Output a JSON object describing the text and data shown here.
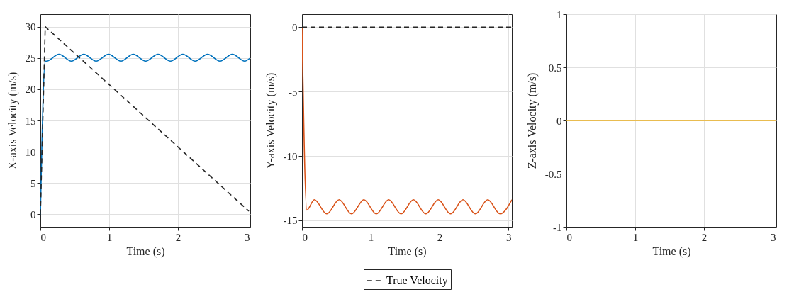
{
  "chart_data": [
    {
      "type": "line",
      "xlabel": "Time (s)",
      "ylabel": "X-axis Velocity (m/s)",
      "xlim": [
        0,
        3.05
      ],
      "xticks": [
        0,
        1,
        2,
        3
      ],
      "ylim": [
        -2,
        32
      ],
      "yticks": [
        0,
        5,
        10,
        15,
        20,
        25,
        30
      ],
      "grid": true,
      "series": [
        {
          "color": "#0072bd",
          "line_style": "solid",
          "x": [
            0,
            0.07,
            0.09,
            0.27,
            0.45,
            0.63,
            0.81,
            0.99,
            1.17,
            1.35,
            1.53,
            1.71,
            1.89,
            2.07,
            2.25,
            2.43,
            2.61,
            2.79,
            2.97,
            3.05
          ],
          "values": [
            0,
            24.5,
            24.5,
            25.6,
            24.5,
            25.6,
            24.5,
            25.6,
            24.5,
            25.6,
            24.5,
            25.6,
            24.5,
            25.6,
            24.5,
            25.6,
            24.5,
            25.6,
            24.5,
            25
          ]
        },
        {
          "color": "#262626",
          "line_style": "dashed",
          "x": [
            0,
            0.07,
            3.03
          ],
          "values": [
            0,
            30,
            0.5
          ]
        }
      ]
    },
    {
      "type": "line",
      "xlabel": "Time (s)",
      "ylabel": "Y-axis Velocity (m/s)",
      "xlim": [
        0,
        3.05
      ],
      "xticks": [
        0,
        1,
        2,
        3
      ],
      "ylim": [
        -15.5,
        1
      ],
      "yticks": [
        -15,
        -10,
        -5,
        0
      ],
      "grid": true,
      "legend": "bottom",
      "series": [
        {
          "color": "#d95319",
          "line_style": "solid",
          "x": [
            0,
            0.07,
            0.18,
            0.36,
            0.54,
            0.72,
            0.9,
            1.08,
            1.26,
            1.44,
            1.62,
            1.8,
            1.98,
            2.16,
            2.34,
            2.52,
            2.7,
            2.88,
            3.05
          ],
          "values": [
            0,
            -14.2,
            -13.4,
            -14.5,
            -13.4,
            -14.5,
            -13.4,
            -14.5,
            -13.4,
            -14.5,
            -13.4,
            -14.5,
            -13.4,
            -14.5,
            -13.4,
            -14.5,
            -13.4,
            -14.5,
            -13.4
          ]
        },
        {
          "name": "True Velocity",
          "color": "#262626",
          "line_style": "dashed",
          "x": [
            0,
            3.05
          ],
          "values": [
            0,
            0
          ]
        }
      ]
    },
    {
      "type": "line",
      "xlabel": "Time (s)",
      "ylabel": "Z-axis Velocity (m/s)",
      "xlim": [
        0,
        3.05
      ],
      "xticks": [
        0,
        1,
        2,
        3
      ],
      "ylim": [
        -1,
        1
      ],
      "yticks": [
        -1,
        -0.5,
        0,
        0.5,
        1
      ],
      "grid": true,
      "series": [
        {
          "color": "#edb120",
          "line_style": "solid",
          "x": [
            0,
            3.05
          ],
          "values": [
            0,
            0
          ]
        }
      ]
    }
  ]
}
